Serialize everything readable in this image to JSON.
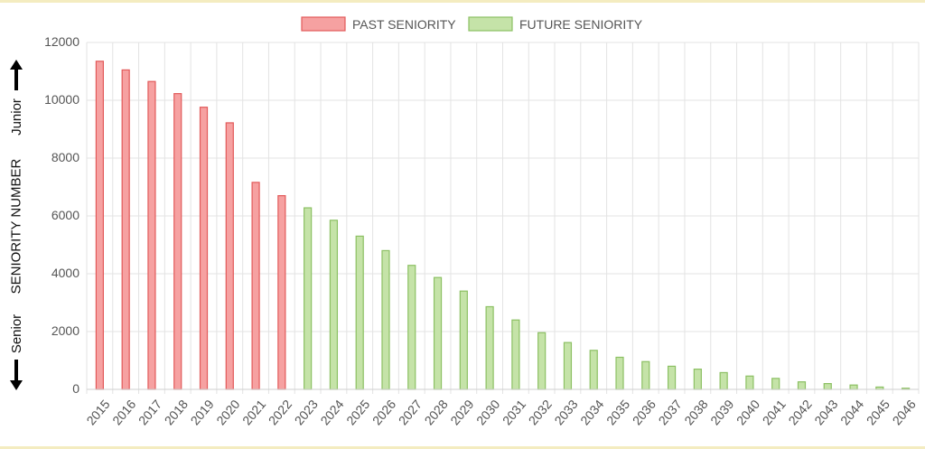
{
  "chart_data": {
    "type": "bar",
    "categories": [
      "2015",
      "2016",
      "2017",
      "2018",
      "2019",
      "2020",
      "2021",
      "2022",
      "2023",
      "2024",
      "2025",
      "2026",
      "2027",
      "2028",
      "2029",
      "2030",
      "2031",
      "2032",
      "2033",
      "2034",
      "2035",
      "2036",
      "2037",
      "2038",
      "2039",
      "2040",
      "2041",
      "2042",
      "2043",
      "2044",
      "2045",
      "2046"
    ],
    "series": [
      {
        "name": "PAST SENIORITY",
        "color": "#f6a1a1",
        "border": "#e25a5a",
        "values": [
          11350,
          11050,
          10650,
          10230,
          9760,
          9220,
          7160,
          6700,
          null,
          null,
          null,
          null,
          null,
          null,
          null,
          null,
          null,
          null,
          null,
          null,
          null,
          null,
          null,
          null,
          null,
          null,
          null,
          null,
          null,
          null,
          null,
          null
        ]
      },
      {
        "name": "FUTURE SENIORITY",
        "color": "#c5e3a8",
        "border": "#8cc063",
        "values": [
          null,
          null,
          null,
          null,
          null,
          null,
          null,
          null,
          6280,
          5850,
          5300,
          4800,
          4290,
          3870,
          3400,
          2860,
          2400,
          1960,
          1620,
          1350,
          1110,
          960,
          800,
          700,
          580,
          460,
          380,
          260,
          200,
          150,
          80,
          40
        ]
      }
    ],
    "ylim": [
      0,
      12000
    ],
    "yticks": [
      0,
      2000,
      4000,
      6000,
      8000,
      10000,
      12000
    ],
    "ylabel": "SENIORITY NUMBER",
    "ylabel_top": "Junior",
    "ylabel_bottom": "Senior",
    "grid": true,
    "legend": "top-center"
  }
}
